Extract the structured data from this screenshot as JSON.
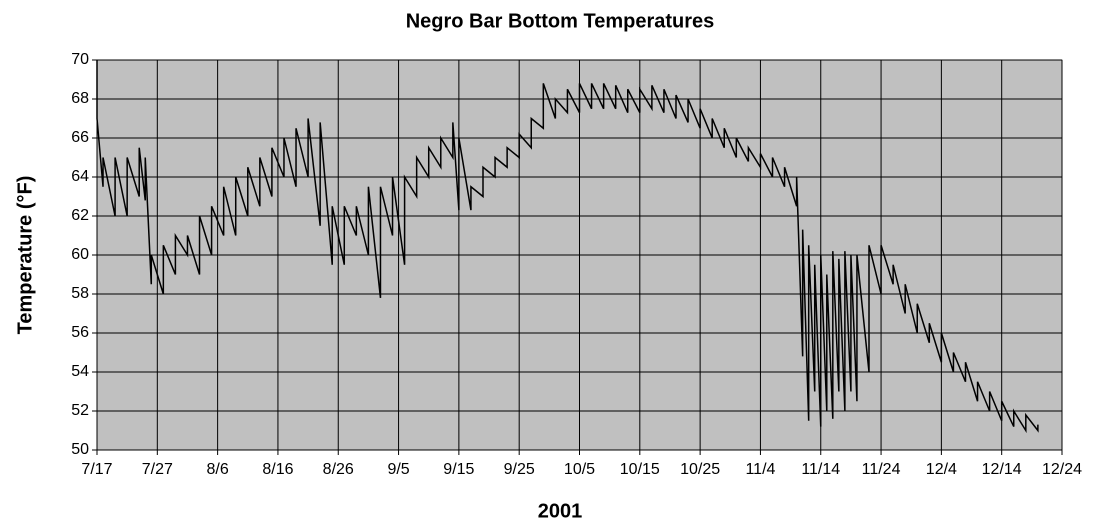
{
  "chart_data": {
    "type": "line",
    "title": "Negro Bar Bottom Temperatures",
    "xlabel": "2001",
    "ylabel": "Temperature (°F)",
    "color": "#000000",
    "background": "#c0c0c0",
    "grid": true,
    "x": [
      "2001-07-17",
      "2001-07-17",
      "2001-07-18",
      "2001-07-18",
      "2001-07-20",
      "2001-07-20",
      "2001-07-22",
      "2001-07-22",
      "2001-07-24",
      "2001-07-24",
      "2001-07-25",
      "2001-07-25",
      "2001-07-26",
      "2001-07-26",
      "2001-07-28",
      "2001-07-28",
      "2001-07-30",
      "2001-07-30",
      "2001-08-01",
      "2001-08-01",
      "2001-08-03",
      "2001-08-03",
      "2001-08-05",
      "2001-08-05",
      "2001-08-07",
      "2001-08-07",
      "2001-08-09",
      "2001-08-09",
      "2001-08-11",
      "2001-08-11",
      "2001-08-13",
      "2001-08-13",
      "2001-08-15",
      "2001-08-15",
      "2001-08-17",
      "2001-08-17",
      "2001-08-19",
      "2001-08-19",
      "2001-08-21",
      "2001-08-21",
      "2001-08-23",
      "2001-08-23",
      "2001-08-25",
      "2001-08-25",
      "2001-08-27",
      "2001-08-27",
      "2001-08-29",
      "2001-08-29",
      "2001-08-31",
      "2001-08-31",
      "2001-09-02",
      "2001-09-02",
      "2001-09-04",
      "2001-09-04",
      "2001-09-06",
      "2001-09-06",
      "2001-09-08",
      "2001-09-08",
      "2001-09-10",
      "2001-09-10",
      "2001-09-12",
      "2001-09-12",
      "2001-09-14",
      "2001-09-14",
      "2001-09-15",
      "2001-09-15",
      "2001-09-17",
      "2001-09-17",
      "2001-09-19",
      "2001-09-19",
      "2001-09-21",
      "2001-09-21",
      "2001-09-23",
      "2001-09-23",
      "2001-09-25",
      "2001-09-25",
      "2001-09-27",
      "2001-09-27",
      "2001-09-29",
      "2001-09-29",
      "2001-10-01",
      "2001-10-01",
      "2001-10-03",
      "2001-10-03",
      "2001-10-05",
      "2001-10-05",
      "2001-10-07",
      "2001-10-07",
      "2001-10-09",
      "2001-10-09",
      "2001-10-11",
      "2001-10-11",
      "2001-10-13",
      "2001-10-13",
      "2001-10-15",
      "2001-10-15",
      "2001-10-17",
      "2001-10-17",
      "2001-10-19",
      "2001-10-19",
      "2001-10-21",
      "2001-10-21",
      "2001-10-23",
      "2001-10-23",
      "2001-10-25",
      "2001-10-25",
      "2001-10-27",
      "2001-10-27",
      "2001-10-29",
      "2001-10-29",
      "2001-10-31",
      "2001-10-31",
      "2001-11-02",
      "2001-11-02",
      "2001-11-04",
      "2001-11-04",
      "2001-11-06",
      "2001-11-06",
      "2001-11-08",
      "2001-11-08",
      "2001-11-10",
      "2001-11-10",
      "2001-11-11",
      "2001-11-11",
      "2001-11-12",
      "2001-11-12",
      "2001-11-13",
      "2001-11-13",
      "2001-11-14",
      "2001-11-14",
      "2001-11-15",
      "2001-11-15",
      "2001-11-16",
      "2001-11-16",
      "2001-11-17",
      "2001-11-17",
      "2001-11-18",
      "2001-11-18",
      "2001-11-19",
      "2001-11-19",
      "2001-11-20",
      "2001-11-20",
      "2001-11-22",
      "2001-11-22",
      "2001-11-24",
      "2001-11-24",
      "2001-11-26",
      "2001-11-26",
      "2001-11-28",
      "2001-11-28",
      "2001-11-30",
      "2001-11-30",
      "2001-12-02",
      "2001-12-02",
      "2001-12-04",
      "2001-12-04",
      "2001-12-06",
      "2001-12-06",
      "2001-12-08",
      "2001-12-08",
      "2001-12-10",
      "2001-12-10",
      "2001-12-12",
      "2001-12-12",
      "2001-12-14",
      "2001-12-14",
      "2001-12-16",
      "2001-12-16",
      "2001-12-18",
      "2001-12-18",
      "2001-12-20",
      "2001-12-20"
    ],
    "values": [
      70,
      67,
      63.5,
      65,
      62,
      65,
      62,
      65,
      63,
      65.5,
      62.8,
      65,
      58.5,
      60,
      58,
      60.5,
      59,
      61,
      60,
      61,
      59,
      62,
      60,
      62.5,
      61,
      63.5,
      61,
      64,
      62,
      64.5,
      62.5,
      65,
      63,
      65.5,
      64,
      66,
      63.5,
      66.5,
      64,
      67,
      61.5,
      66.8,
      59.5,
      62.5,
      59.5,
      62.5,
      61,
      62.5,
      60,
      63.5,
      57.8,
      63.5,
      61,
      64,
      59.5,
      64,
      63,
      65,
      64,
      65.5,
      64.5,
      66,
      65,
      66.8,
      62.3,
      66,
      62.3,
      63.5,
      63,
      64.5,
      64,
      65,
      64.5,
      65.5,
      65,
      66.2,
      65.5,
      67,
      66.5,
      68.8,
      67,
      68,
      67.3,
      68.5,
      67.3,
      68.8,
      67.5,
      68.8,
      67.5,
      68.8,
      67.5,
      68.7,
      67.3,
      68.5,
      67.3,
      68.5,
      67.5,
      68.7,
      67.3,
      68.5,
      67,
      68.2,
      66.8,
      68,
      66.5,
      67.5,
      66,
      67,
      65.5,
      66.5,
      65,
      66,
      64.8,
      65.5,
      64.5,
      65.2,
      64,
      65,
      63.5,
      64.5,
      62.5,
      64,
      54.8,
      61.3,
      51.5,
      60.5,
      53,
      59.5,
      51.2,
      60,
      52,
      59,
      51.6,
      60.2,
      53,
      59.8,
      52,
      60.2,
      53,
      60,
      52.5,
      60,
      54,
      60.5,
      58,
      60.5,
      58.5,
      59.5,
      57,
      58.5,
      56,
      57.5,
      55.5,
      56.5,
      54.5,
      56,
      54,
      55,
      53.5,
      54.5,
      52.5,
      53.5,
      52,
      53,
      51.5,
      52.5,
      51.2,
      52,
      51,
      51.8,
      51,
      51.3
    ],
    "xlim": [
      "2001-07-17",
      "2001-12-24"
    ],
    "xticks": [
      {
        "value": "2001-07-17",
        "label": "7/17"
      },
      {
        "value": "2001-07-27",
        "label": "7/27"
      },
      {
        "value": "2001-08-06",
        "label": "8/6"
      },
      {
        "value": "2001-08-16",
        "label": "8/16"
      },
      {
        "value": "2001-08-26",
        "label": "8/26"
      },
      {
        "value": "2001-09-05",
        "label": "9/5"
      },
      {
        "value": "2001-09-15",
        "label": "9/15"
      },
      {
        "value": "2001-09-25",
        "label": "9/25"
      },
      {
        "value": "2001-10-05",
        "label": "10/5"
      },
      {
        "value": "2001-10-15",
        "label": "10/15"
      },
      {
        "value": "2001-10-25",
        "label": "10/25"
      },
      {
        "value": "2001-11-04",
        "label": "11/4"
      },
      {
        "value": "2001-11-14",
        "label": "11/14"
      },
      {
        "value": "2001-11-24",
        "label": "11/24"
      },
      {
        "value": "2001-12-04",
        "label": "12/4"
      },
      {
        "value": "2001-12-14",
        "label": "12/14"
      },
      {
        "value": "2001-12-24",
        "label": "12/24"
      }
    ],
    "ylim": [
      50,
      70
    ],
    "yticks": [
      50,
      52,
      54,
      56,
      58,
      60,
      62,
      64,
      66,
      68,
      70
    ]
  }
}
